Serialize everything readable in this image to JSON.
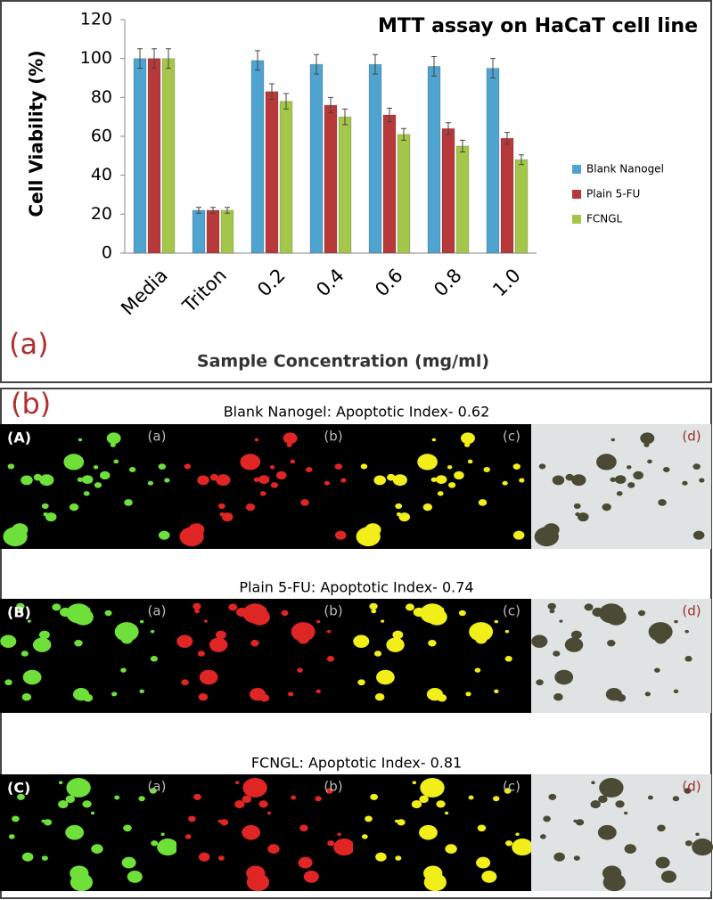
{
  "chart_data": {
    "type": "bar",
    "title": "MTT assay on HaCaT cell line",
    "y_label": "Cell Viability (%)",
    "x_label": "Sample Concentration (mg/ml)",
    "categories": [
      "Media",
      "Triton",
      "0.2",
      "0.4",
      "0.6",
      "0.8",
      "1.0"
    ],
    "series": [
      {
        "name": "Blank Nanogel",
        "color": "#4fa3cf",
        "values": [
          100,
          22,
          99,
          97,
          97,
          96,
          95
        ],
        "errors": [
          5,
          1.5,
          5,
          5,
          5,
          5,
          5
        ]
      },
      {
        "name": "Plain  5-FU",
        "color": "#b8393a",
        "values": [
          100,
          22,
          83,
          76,
          71,
          64,
          59
        ],
        "errors": [
          5,
          1.5,
          4,
          4,
          3.5,
          3,
          3
        ]
      },
      {
        "name": "FCNGL",
        "color": "#a3c64b",
        "values": [
          100,
          22,
          78,
          70,
          61,
          55,
          48
        ],
        "errors": [
          5,
          1.5,
          4,
          4,
          3,
          3,
          2.5
        ]
      }
    ],
    "ylim": [
      0,
      120
    ],
    "yticks": [
      0,
      20,
      40,
      60,
      80,
      100,
      120
    ],
    "grid": false,
    "legend": "right"
  },
  "figure": {
    "panel_a_label": "(a)",
    "panel_b_label": "(b)",
    "rows": [
      {
        "title": "Blank Nanogel: Apoptotic Index- 0.62",
        "label": "(A)",
        "image_labels": [
          "(a)",
          "(b)",
          "(c)",
          "(d)"
        ]
      },
      {
        "title": "Plain 5-FU: Apoptotic Index- 0.74",
        "label": "(B)",
        "image_labels": [
          "(a)",
          "(b)",
          "(c)",
          "(d)"
        ]
      },
      {
        "title": "FCNGL: Apoptotic Index- 0.81",
        "label": "(C)",
        "image_labels": [
          "(a)",
          "(b)",
          "(c)",
          "(d)"
        ]
      }
    ]
  }
}
